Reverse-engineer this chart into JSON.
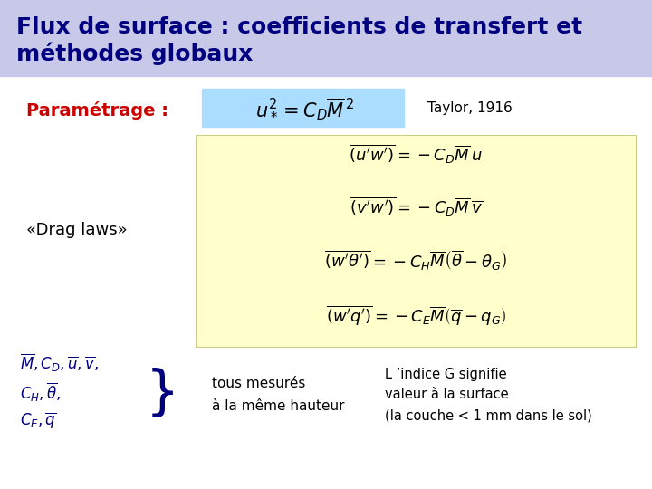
{
  "title": "Flux de surface : coefficients de transfert et\nméthodes globaux",
  "title_bg": "#c8c8e8",
  "title_color": "#000080",
  "title_fontsize": 18,
  "parametrage_label": "Paramétrage :",
  "parametrage_color": "#cc0000",
  "taylor_text": "Taylor, 1916",
  "taylor_color": "#000000",
  "eq_main": "$u_*^2 = C_D\\overline{M}^{\\,2}$",
  "eq_main_bg": "#aaddff",
  "drag_label": "«Drag laws»",
  "drag_color": "#000000",
  "equations": [
    "$\\overline{(u'w')} = -C_D\\overline{M}\\,\\overline{u}$",
    "$\\overline{(v'w')} = -C_D\\overline{M}\\,\\overline{v}$",
    "$\\overline{(w'\\theta')} = -C_H\\overline{M}\\left(\\overline{\\theta}-\\theta_G\\right)$",
    "$\\overline{(w'q')} = -C_E\\overline{M}\\left(\\overline{q}-q_G\\right)$"
  ],
  "eq_box_bg": "#ffffcc",
  "vars_text": "$\\overline{M}, C_D, \\overline{u}, \\overline{v},$",
  "vars_text2": "$C_H, \\overline{\\theta},$",
  "vars_text3": "$C_E, \\overline{q}$",
  "vars_color": "#000080",
  "mesures_line1": "tous mesurés",
  "mesures_line2": "à la même hauteur",
  "mesures_color": "#000000",
  "indice_line1": "L ’indice G signifie",
  "indice_line2": "valeur à la surface",
  "indice_line3": "(la couche < 1 mm dans le sol)",
  "indice_color": "#000000",
  "bg_color": "#ffffff"
}
